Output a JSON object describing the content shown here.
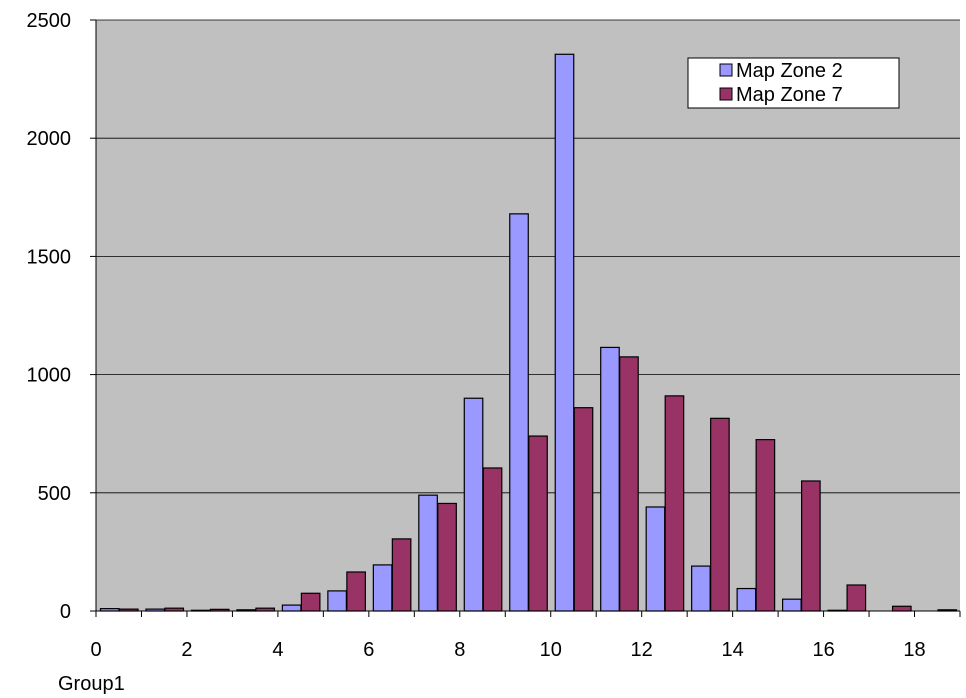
{
  "chart_data": {
    "type": "bar",
    "xlabel": "Group1",
    "ylabel": "",
    "title": "",
    "ylim": [
      0,
      2500
    ],
    "yticks": [
      0,
      500,
      1000,
      1500,
      2000,
      2500
    ],
    "xticks": [
      0,
      2,
      4,
      6,
      8,
      10,
      12,
      14,
      16,
      18
    ],
    "categories": [
      0,
      1,
      2,
      3,
      4,
      5,
      6,
      7,
      8,
      9,
      10,
      11,
      12,
      13,
      14,
      15,
      16,
      17,
      18
    ],
    "grid": "horizontal",
    "legend_position": "top-right",
    "series": [
      {
        "name": "Map Zone 2",
        "color": "#9999ff",
        "values": [
          10,
          8,
          3,
          5,
          25,
          85,
          195,
          490,
          900,
          1680,
          2355,
          1115,
          440,
          190,
          95,
          50,
          3,
          0,
          0
        ]
      },
      {
        "name": "Map Zone 7",
        "color": "#993366",
        "values": [
          8,
          12,
          7,
          12,
          75,
          165,
          305,
          455,
          605,
          740,
          860,
          1075,
          910,
          815,
          725,
          550,
          110,
          20,
          5
        ]
      }
    ],
    "plot_background": "#c0c0c0",
    "grid_color": "#000000"
  }
}
